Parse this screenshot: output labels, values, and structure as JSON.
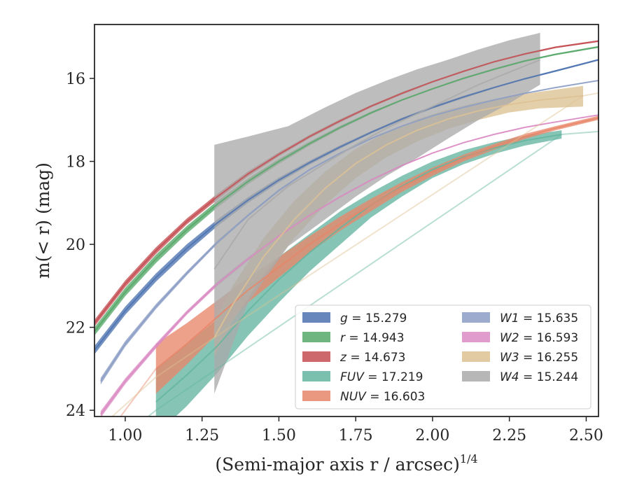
{
  "chart_data": {
    "type": "line",
    "xlabel": "(Semi-major axis r / arcsec)",
    "xlabel_sup": "1/4",
    "ylabel": "m(< r) (mag)",
    "xlim": [
      0.9,
      2.54
    ],
    "ylim": [
      24.15,
      14.7
    ],
    "y_inverted": true,
    "xticks": [
      1.0,
      1.25,
      1.5,
      1.75,
      2.0,
      2.25,
      2.5
    ],
    "xtick_labels": [
      "1.00",
      "1.25",
      "1.50",
      "1.75",
      "2.00",
      "2.25",
      "2.50"
    ],
    "yticks": [
      16,
      18,
      20,
      22,
      24
    ],
    "ytick_labels": [
      "16",
      "18",
      "20",
      "22",
      "24"
    ],
    "grid": false,
    "legend_position": "lower-right",
    "series": [
      {
        "name": "g = 15.279",
        "band": "g",
        "value": "15.279",
        "color": "#4c72b0",
        "x": [
          0.9,
          1.0,
          1.1,
          1.2,
          1.3,
          1.4,
          1.5,
          1.6,
          1.7,
          1.8,
          1.9,
          2.0,
          2.1,
          2.2,
          2.3,
          2.4,
          2.54
        ],
        "y": [
          22.55,
          21.6,
          20.8,
          20.1,
          19.48,
          18.93,
          18.45,
          18.03,
          17.65,
          17.3,
          16.98,
          16.7,
          16.45,
          16.22,
          16.01,
          15.82,
          15.55
        ],
        "lower": [
          22.45,
          21.5,
          20.7,
          20.0,
          19.4,
          18.86,
          18.39,
          17.98,
          17.61,
          17.27,
          16.95,
          16.67,
          16.42,
          16.2,
          15.99,
          15.8,
          15.53
        ],
        "upper": [
          22.65,
          21.7,
          20.9,
          20.2,
          19.56,
          19.0,
          18.51,
          18.08,
          17.69,
          17.33,
          17.01,
          16.73,
          16.48,
          16.24,
          16.03,
          15.84,
          15.57
        ]
      },
      {
        "name": "r = 14.943",
        "band": "r",
        "value": "14.943",
        "color": "#55a868",
        "x": [
          0.9,
          1.0,
          1.1,
          1.2,
          1.3,
          1.4,
          1.5,
          1.6,
          1.7,
          1.8,
          1.9,
          2.0,
          2.1,
          2.2,
          2.3,
          2.4,
          2.54
        ],
        "y": [
          22.1,
          21.15,
          20.35,
          19.65,
          19.03,
          18.48,
          18.0,
          17.57,
          17.18,
          16.83,
          16.52,
          16.25,
          16.0,
          15.78,
          15.58,
          15.42,
          15.24
        ],
        "lower": [
          22.0,
          21.05,
          20.25,
          19.56,
          18.95,
          18.41,
          17.94,
          17.52,
          17.14,
          16.8,
          16.5,
          16.23,
          15.98,
          15.76,
          15.56,
          15.4,
          15.22
        ],
        "upper": [
          22.2,
          21.25,
          20.45,
          19.74,
          19.11,
          18.55,
          18.06,
          17.62,
          17.22,
          16.86,
          16.54,
          16.27,
          16.02,
          15.8,
          15.6,
          15.44,
          15.26
        ]
      },
      {
        "name": "z = 14.673",
        "band": "z",
        "value": "14.673",
        "color": "#c44e52",
        "x": [
          0.9,
          1.0,
          1.1,
          1.2,
          1.3,
          1.4,
          1.5,
          1.6,
          1.7,
          1.8,
          1.9,
          2.0,
          2.1,
          2.2,
          2.3,
          2.4,
          2.54
        ],
        "y": [
          21.9,
          20.95,
          20.15,
          19.45,
          18.85,
          18.3,
          17.83,
          17.4,
          17.02,
          16.67,
          16.36,
          16.08,
          15.83,
          15.6,
          15.41,
          15.25,
          15.1
        ],
        "lower": [
          21.82,
          20.87,
          20.07,
          19.38,
          18.78,
          18.24,
          17.78,
          17.36,
          16.98,
          16.64,
          16.33,
          16.06,
          15.81,
          15.58,
          15.39,
          15.23,
          15.08
        ],
        "upper": [
          21.98,
          21.03,
          20.23,
          19.52,
          18.92,
          18.36,
          17.88,
          17.44,
          17.06,
          16.7,
          16.39,
          16.1,
          15.85,
          15.62,
          15.43,
          15.27,
          15.12
        ]
      },
      {
        "name": "FUV = 17.219",
        "band": "FUV",
        "value": "17.219",
        "color": "#64b5a0",
        "x": [
          1.1,
          1.2,
          1.3,
          1.4,
          1.5,
          1.6,
          1.7,
          1.8,
          1.9,
          2.0,
          2.1,
          2.2,
          2.3,
          2.42
        ],
        "y": [
          23.8,
          23.15,
          22.45,
          21.6,
          20.85,
          20.2,
          19.6,
          19.05,
          18.6,
          18.2,
          17.9,
          17.68,
          17.5,
          17.35
        ],
        "lower": [
          23.0,
          22.4,
          21.8,
          21.0,
          20.3,
          19.75,
          19.2,
          18.75,
          18.35,
          18.0,
          17.73,
          17.54,
          17.38,
          17.25
        ],
        "upper": [
          24.6,
          23.9,
          23.1,
          22.2,
          21.4,
          20.65,
          20.0,
          19.35,
          18.85,
          18.4,
          18.07,
          17.82,
          17.62,
          17.45
        ],
        "extension": {
          "x": [
            1.0,
            1.1,
            2.42,
            2.54
          ],
          "y": [
            24.6,
            24.0,
            17.35,
            17.28
          ]
        }
      },
      {
        "name": "NUV = 16.603",
        "band": "NUV",
        "value": "16.603",
        "color": "#e8866a",
        "x": [
          1.1,
          1.2,
          1.3,
          1.4,
          1.5,
          1.6,
          1.7,
          1.8,
          1.9,
          2.0,
          2.1,
          2.2,
          2.3,
          2.4,
          2.54
        ],
        "y": [
          23.0,
          22.4,
          21.75,
          21.1,
          20.55,
          20.0,
          19.5,
          19.05,
          18.62,
          18.25,
          17.92,
          17.65,
          17.4,
          17.2,
          16.95
        ],
        "lower": [
          22.4,
          21.9,
          21.35,
          20.8,
          20.3,
          19.8,
          19.33,
          18.9,
          18.5,
          18.15,
          17.84,
          17.58,
          17.34,
          17.15,
          16.9
        ],
        "upper": [
          23.6,
          22.9,
          22.15,
          21.4,
          20.8,
          20.2,
          19.67,
          19.2,
          18.74,
          18.35,
          18.0,
          17.72,
          17.46,
          17.25,
          17.0
        ],
        "extension": {
          "x": [
            0.9,
            1.0,
            1.1
          ],
          "y": [
            25.0,
            24.0,
            23.0
          ]
        }
      },
      {
        "name": "W1 = 15.635",
        "band": "W1",
        "value": "15.635",
        "color": "#8c9ec5",
        "x": [
          0.92,
          1.0,
          1.1,
          1.2,
          1.3,
          1.4,
          1.5,
          1.6,
          1.7,
          1.8,
          1.9,
          2.0,
          2.1,
          2.2,
          2.3,
          2.4,
          2.54
        ],
        "y": [
          23.3,
          22.4,
          21.5,
          20.7,
          19.95,
          19.3,
          18.7,
          18.2,
          17.8,
          17.45,
          17.15,
          16.9,
          16.7,
          16.52,
          16.36,
          16.22,
          16.05
        ],
        "lower": [
          23.22,
          22.33,
          21.44,
          20.65,
          19.91,
          19.27,
          18.67,
          18.18,
          17.78,
          17.43,
          17.14,
          16.89,
          16.69,
          16.51,
          16.35,
          16.21,
          16.04
        ],
        "upper": [
          23.38,
          22.47,
          21.56,
          20.75,
          19.99,
          19.33,
          18.73,
          18.22,
          17.82,
          17.47,
          17.16,
          16.91,
          16.71,
          16.53,
          16.37,
          16.23,
          16.06
        ]
      },
      {
        "name": "W2 = 16.593",
        "band": "W2",
        "value": "16.593",
        "color": "#da8bc3",
        "x": [
          0.92,
          1.0,
          1.1,
          1.2,
          1.3,
          1.4,
          1.5,
          1.6,
          1.7,
          1.8,
          1.9,
          2.0,
          2.1,
          2.2,
          2.3,
          2.4,
          2.54
        ],
        "y": [
          24.1,
          23.3,
          22.45,
          21.65,
          20.95,
          20.35,
          19.8,
          19.3,
          18.85,
          18.45,
          18.1,
          17.8,
          17.55,
          17.35,
          17.18,
          17.05,
          16.88
        ],
        "lower": [
          24.02,
          23.23,
          22.39,
          21.6,
          20.9,
          20.31,
          19.77,
          19.27,
          18.83,
          18.43,
          18.08,
          17.79,
          17.54,
          17.34,
          17.17,
          17.04,
          16.87
        ],
        "upper": [
          24.18,
          23.37,
          22.51,
          21.7,
          21.0,
          20.39,
          19.83,
          19.33,
          18.87,
          18.47,
          18.12,
          17.81,
          17.56,
          17.36,
          17.19,
          17.06,
          16.89
        ]
      },
      {
        "name": "W3 = 16.255",
        "band": "W3",
        "value": "16.255",
        "color": "#ddc193",
        "x": [
          1.29,
          1.35,
          1.45,
          1.55,
          1.65,
          1.75,
          1.85,
          1.95,
          2.05,
          2.15,
          2.25,
          2.35,
          2.49
        ],
        "y": [
          22.25,
          21.45,
          20.3,
          19.4,
          18.65,
          18.05,
          17.6,
          17.25,
          16.98,
          16.78,
          16.63,
          16.52,
          16.42
        ],
        "lower": [
          21.85,
          21.0,
          19.85,
          18.95,
          18.25,
          17.7,
          17.3,
          16.98,
          16.75,
          16.57,
          16.43,
          16.32,
          16.18
        ],
        "upper": [
          22.7,
          21.85,
          20.75,
          19.85,
          19.05,
          18.4,
          17.9,
          17.52,
          17.22,
          17.0,
          16.82,
          16.72,
          16.68
        ],
        "extension": {
          "x": [
            0.95,
            1.1,
            1.29,
            2.49,
            2.54
          ],
          "y": [
            24.2,
            23.2,
            22.25,
            16.42,
            16.35
          ]
        }
      },
      {
        "name": "W4 = 15.244",
        "band": "W4",
        "value": "15.244",
        "color": "#aaaaaa",
        "x": [
          1.29,
          1.4,
          1.53,
          1.65,
          1.75,
          1.85,
          1.95,
          2.05,
          2.15,
          2.25,
          2.35
        ],
        "y": [
          20.6,
          19.4,
          18.6,
          18.05,
          17.6,
          17.2,
          16.85,
          16.5,
          16.15,
          15.85,
          15.55
        ],
        "lower": [
          17.6,
          17.4,
          17.15,
          16.7,
          16.35,
          16.05,
          15.78,
          15.55,
          15.3,
          15.08,
          14.9
        ],
        "upper": [
          23.6,
          21.4,
          20.05,
          19.4,
          18.85,
          18.35,
          17.92,
          17.45,
          17.0,
          16.6,
          16.15
        ]
      }
    ],
    "legend_columns": [
      [
        "g = 15.279",
        "r = 14.943",
        "z = 14.673",
        "FUV = 17.219",
        "NUV = 16.603"
      ],
      [
        "W1 = 15.635",
        "W2 = 16.593",
        "W3 = 16.255",
        "W4 = 15.244"
      ]
    ]
  },
  "colors": {
    "axes": "#262626",
    "background": "#ffffff",
    "legend_border": "#cccccc"
  }
}
